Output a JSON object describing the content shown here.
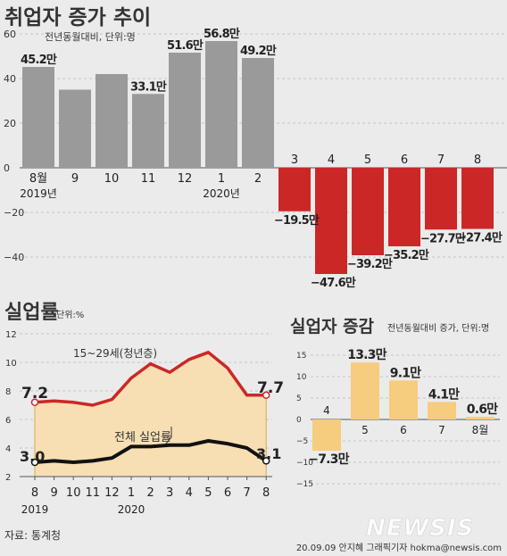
{
  "chart_data": [
    {
      "type": "bar",
      "title": "취업자 증가 추이",
      "subtitle": "전년동월대비, 단위:명",
      "categories": [
        "8월",
        "9",
        "10",
        "11",
        "12",
        "1",
        "2",
        "3",
        "4",
        "5",
        "6",
        "7",
        "8"
      ],
      "year_labels": [
        {
          "at": 0,
          "text": "2019년"
        },
        {
          "at": 5,
          "text": "2020년"
        }
      ],
      "values": [
        45.2,
        35.0,
        42.0,
        33.1,
        51.6,
        56.8,
        49.2,
        -19.5,
        -47.6,
        -39.2,
        -35.2,
        -27.7,
        -27.4
      ],
      "data_labels": [
        "45.2만",
        "",
        "",
        "33.1만",
        "51.6만",
        "56.8만",
        "49.2만",
        "−19.5만",
        "−47.6만",
        "−39.2만",
        "−35.2만",
        "−27.7만",
        "−27.4만"
      ],
      "ylim": [
        -50,
        60
      ],
      "yticks": [
        60,
        40,
        20,
        0,
        -20,
        -40
      ],
      "ytick_labels": [
        "60",
        "40",
        "20",
        "0",
        "−20",
        "−40"
      ],
      "colors": {
        "positive": "#9a9a9a",
        "negative": "#cc2727"
      }
    },
    {
      "type": "line",
      "title": "실업률",
      "subtitle": "단위:%",
      "categories": [
        "8",
        "9",
        "10",
        "11",
        "12",
        "1",
        "2",
        "3",
        "4",
        "5",
        "6",
        "7",
        "8"
      ],
      "year_labels": [
        {
          "at": 0,
          "text": "2019"
        },
        {
          "at": 5,
          "text": "2020"
        }
      ],
      "ylim": [
        2,
        12
      ],
      "yticks": [
        12,
        10,
        8,
        6,
        4,
        2
      ],
      "series": [
        {
          "name": "15~29세(청년층)",
          "values": [
            7.2,
            7.3,
            7.2,
            7.0,
            7.4,
            8.9,
            9.9,
            9.3,
            10.2,
            10.7,
            9.6,
            7.7,
            7.7
          ],
          "start_label": "7.2",
          "end_label": "7.7",
          "color": "#cc2727"
        },
        {
          "name": "전체 실업률",
          "values": [
            3.0,
            3.1,
            3.0,
            3.1,
            3.3,
            4.1,
            4.1,
            4.2,
            4.2,
            4.5,
            4.3,
            4.0,
            3.1
          ],
          "start_label": "3.0",
          "end_label": "3.1",
          "color": "#111111"
        }
      ],
      "fill_color": "#f7dfb3"
    },
    {
      "type": "bar",
      "title": "실업자 증감",
      "subtitle": "전년동월대비 증가, 단위:명",
      "categories": [
        "4",
        "5",
        "6",
        "7",
        "8월"
      ],
      "values": [
        -7.3,
        13.3,
        9.1,
        4.1,
        0.6
      ],
      "data_labels": [
        "−7.3만",
        "13.3만",
        "9.1만",
        "4.1만",
        "0.6만"
      ],
      "ylim": [
        -15,
        15
      ],
      "yticks": [
        15,
        10,
        5,
        0,
        -5,
        -10,
        -15
      ],
      "ytick_labels": [
        "15",
        "10",
        "5",
        "0",
        "−5",
        "−10",
        "−15"
      ],
      "bar_color": "#f6cc7e"
    }
  ],
  "footer": {
    "source": "자료: 통계청",
    "logo": "NEWSIS",
    "credit": "20.09.09 안지혜 그래픽기자  hokma@newsis.com"
  }
}
